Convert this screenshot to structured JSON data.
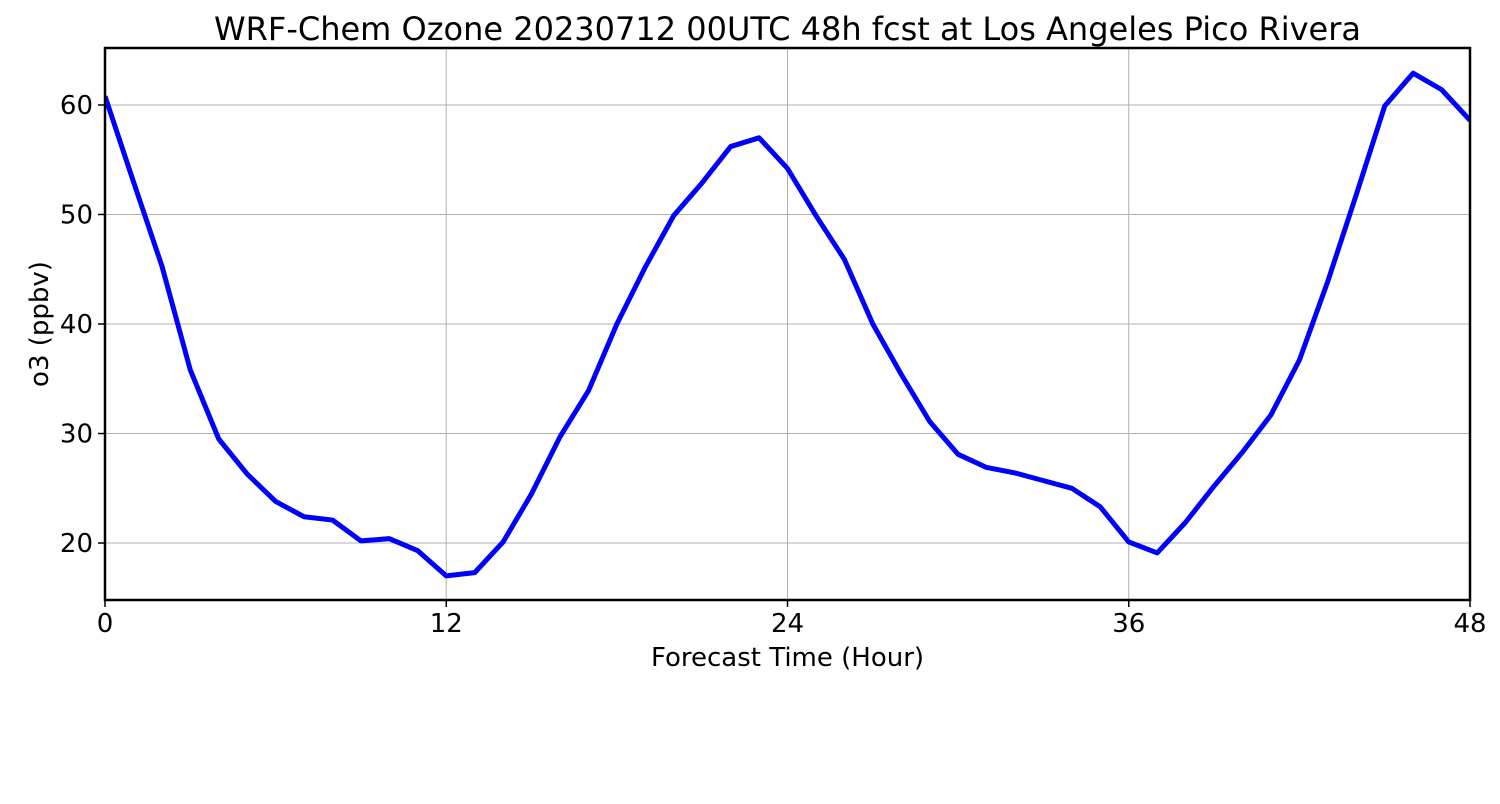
{
  "chart_data": {
    "type": "line",
    "title": "WRF-Chem Ozone  20230712 00UTC 48h fcst at Los Angeles Pico Rivera",
    "xlabel": "Forecast Time (Hour)",
    "ylabel": "o3  (ppbv)",
    "xlim": [
      0,
      48
    ],
    "ylim": [
      14.8,
      65.2
    ],
    "xticks": [
      0,
      12,
      24,
      36,
      48
    ],
    "yticks": [
      20,
      30,
      40,
      50,
      60
    ],
    "grid": true,
    "legend": "none",
    "series": [
      {
        "color": "#0000ff",
        "x": [
          0,
          1,
          2,
          3,
          4,
          5,
          6,
          7,
          8,
          9,
          10,
          11,
          12,
          13,
          14,
          15,
          16,
          17,
          18,
          19,
          20,
          21,
          22,
          23,
          24,
          25,
          26,
          27,
          28,
          29,
          30,
          31,
          32,
          33,
          34,
          35,
          36,
          37,
          38,
          39,
          40,
          41,
          42,
          43,
          44,
          45,
          46,
          47,
          48
        ],
        "values": [
          60.8,
          53.0,
          45.3,
          35.8,
          29.5,
          26.3,
          23.8,
          22.4,
          22.1,
          20.2,
          20.4,
          19.3,
          17.0,
          17.3,
          20.1,
          24.5,
          29.7,
          33.9,
          40.0,
          45.2,
          49.9,
          52.9,
          56.2,
          57.0,
          54.2,
          49.9,
          45.9,
          40.0,
          35.4,
          31.1,
          28.1,
          26.9,
          26.4,
          25.7,
          25.0,
          23.3,
          20.1,
          19.1,
          21.9,
          25.2,
          28.3,
          31.7,
          36.7,
          43.9,
          51.8,
          59.9,
          62.9,
          61.4,
          58.6
        ]
      }
    ]
  }
}
